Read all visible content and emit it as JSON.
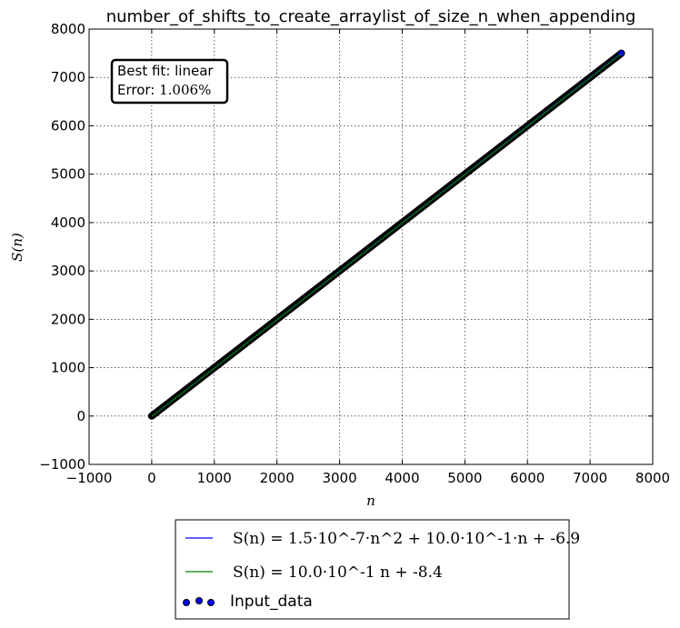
{
  "chart_data": {
    "type": "scatter",
    "title": "number_of_shifts_to_create_arraylist_of_size_n_when_appending",
    "xlabel": "n",
    "ylabel": "S(n)",
    "xlim": [
      -1000,
      8000
    ],
    "ylim": [
      -1000,
      8000
    ],
    "x_ticks": [
      -1000,
      0,
      1000,
      2000,
      3000,
      4000,
      5000,
      6000,
      7000,
      8000
    ],
    "y_ticks": [
      -1000,
      0,
      1000,
      2000,
      3000,
      4000,
      5000,
      6000,
      7000,
      8000
    ],
    "x_tick_labels": [
      "−1000",
      "0",
      "1000",
      "2000",
      "3000",
      "4000",
      "5000",
      "6000",
      "7000",
      "8000"
    ],
    "y_tick_labels": [
      "−1000",
      "0",
      "1000",
      "2000",
      "3000",
      "4000",
      "5000",
      "6000",
      "7000",
      "8000"
    ],
    "grid": true,
    "legend_position": "below",
    "annotation": {
      "line1": "Best fit: linear",
      "line2_prefix": "Error: ",
      "line2_value": "1.006%"
    },
    "series": [
      {
        "name": "S(n) = 1.5·10^-7·n^2 + 10.0·10^-1·n + -6.9",
        "kind": "line",
        "color": "#0000ff",
        "coeffs": {
          "a": 1.5e-07,
          "b": 1.0,
          "c": -6.9
        },
        "x_range": [
          0,
          7500
        ]
      },
      {
        "name": "S(n) = 10.0·10^-1 n + -8.4",
        "kind": "line",
        "color": "#008000",
        "coeffs": {
          "a": 0,
          "b": 1.0,
          "c": -8.4
        },
        "x_range": [
          0,
          7500
        ]
      },
      {
        "name": "Input_data",
        "kind": "scatter",
        "color": "#0000ff",
        "edge_color": "#000000",
        "points": [
          [
            0,
            0
          ],
          [
            250,
            250
          ],
          [
            500,
            500
          ],
          [
            750,
            750
          ],
          [
            1000,
            1000
          ],
          [
            1250,
            1250
          ],
          [
            1500,
            1500
          ],
          [
            1750,
            1750
          ],
          [
            2000,
            2000
          ],
          [
            2250,
            2250
          ],
          [
            2500,
            2500
          ],
          [
            2750,
            2750
          ],
          [
            3000,
            3000
          ],
          [
            3250,
            3250
          ],
          [
            3500,
            3500
          ],
          [
            3750,
            3750
          ],
          [
            4000,
            4000
          ],
          [
            4250,
            4250
          ],
          [
            4500,
            4500
          ],
          [
            4750,
            4750
          ],
          [
            5000,
            5000
          ],
          [
            5250,
            5250
          ],
          [
            5500,
            5500
          ],
          [
            5750,
            5750
          ],
          [
            6000,
            6000
          ],
          [
            6250,
            6250
          ],
          [
            6500,
            6500
          ],
          [
            6750,
            6750
          ],
          [
            7000,
            7000
          ],
          [
            7250,
            7250
          ],
          [
            7500,
            7500
          ]
        ]
      }
    ]
  }
}
